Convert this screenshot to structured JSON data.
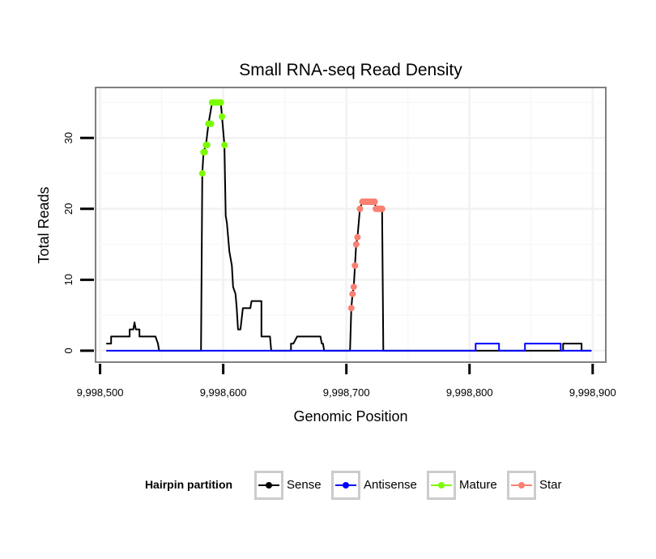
{
  "chart_data": {
    "type": "line",
    "title": "Small RNA-seq Read Density",
    "xlabel": "Genomic Position",
    "ylabel": "Total Reads",
    "xlim": [
      9998497,
      9998910
    ],
    "ylim": [
      -1.5,
      37
    ],
    "x_ticks": [
      9998500,
      9998600,
      9998700,
      9998800,
      9998900
    ],
    "x_tick_labels": [
      "9,998,500",
      "9,998,600",
      "9,998,700",
      "9,998,800",
      "9,998,900"
    ],
    "y_ticks": [
      0,
      10,
      20,
      30
    ],
    "y_tick_labels": [
      "0",
      "10",
      "20",
      "30"
    ],
    "grid": true,
    "legend": {
      "title": "Hairpin partition",
      "position": "bottom",
      "entries": [
        "Sense",
        "Antisense",
        "Mature",
        "Star"
      ]
    },
    "series": [
      {
        "name": "Sense",
        "color": "#000000",
        "markers": false,
        "points": [
          [
            9998505,
            1
          ],
          [
            9998509,
            1
          ],
          [
            9998509,
            2
          ],
          [
            9998524,
            2
          ],
          [
            9998524,
            3
          ],
          [
            9998527,
            3
          ],
          [
            9998528,
            4
          ],
          [
            9998529,
            3
          ],
          [
            9998532,
            3
          ],
          [
            9998532,
            2
          ],
          [
            9998545,
            2
          ],
          [
            9998547,
            1
          ],
          [
            9998548,
            0
          ],
          [
            9998582,
            0
          ],
          [
            9998583,
            25
          ],
          [
            9998584,
            28
          ],
          [
            9998586,
            29
          ],
          [
            9998588,
            32
          ],
          [
            9998591,
            35
          ],
          [
            9998598,
            35
          ],
          [
            9998599,
            33
          ],
          [
            9998601,
            29
          ],
          [
            9998602,
            19
          ],
          [
            9998603,
            18
          ],
          [
            9998604,
            16
          ],
          [
            9998605,
            14
          ],
          [
            9998607,
            12
          ],
          [
            9998608,
            9
          ],
          [
            9998610,
            8
          ],
          [
            9998611,
            6
          ],
          [
            9998612,
            3
          ],
          [
            9998614,
            3
          ],
          [
            9998616,
            6
          ],
          [
            9998622,
            6
          ],
          [
            9998623,
            7
          ],
          [
            9998631,
            7
          ],
          [
            9998631,
            2
          ],
          [
            9998638,
            2
          ],
          [
            9998639,
            0
          ],
          [
            9998655,
            0
          ],
          [
            9998655,
            1
          ],
          [
            9998657,
            1
          ],
          [
            9998660,
            2
          ],
          [
            9998679,
            2
          ],
          [
            9998680,
            1
          ],
          [
            9998681,
            1
          ],
          [
            9998682,
            0
          ],
          [
            9998703,
            0
          ],
          [
            9998704,
            6
          ],
          [
            9998705,
            8
          ],
          [
            9998706,
            9
          ],
          [
            9998707,
            12
          ],
          [
            9998708,
            15
          ],
          [
            9998709,
            16
          ],
          [
            9998711,
            20
          ],
          [
            9998713,
            21
          ],
          [
            9998723,
            21
          ],
          [
            9998724,
            20
          ],
          [
            9998729,
            20
          ],
          [
            9998730,
            0
          ],
          [
            9998876,
            0
          ],
          [
            9998876,
            1
          ],
          [
            9998891,
            1
          ],
          [
            9998891,
            0
          ],
          [
            9998899,
            0
          ]
        ]
      },
      {
        "name": "Antisense",
        "color": "#0000ff",
        "markers": false,
        "points": [
          [
            9998505,
            0
          ],
          [
            9998805,
            0
          ],
          [
            9998805,
            1
          ],
          [
            9998824,
            1
          ],
          [
            9998824,
            0
          ],
          [
            9998845,
            0
          ],
          [
            9998845,
            1
          ],
          [
            9998874,
            1
          ],
          [
            9998874,
            0
          ],
          [
            9998899,
            0
          ]
        ]
      },
      {
        "name": "Mature",
        "color": "#7cfc00",
        "markers": true,
        "points": [
          [
            9998583,
            25
          ],
          [
            9998584,
            28
          ],
          [
            9998585,
            28
          ],
          [
            9998586,
            29
          ],
          [
            9998587,
            29
          ],
          [
            9998588,
            32
          ],
          [
            9998589,
            32
          ],
          [
            9998590,
            32
          ],
          [
            9998591,
            35
          ],
          [
            9998592,
            35
          ],
          [
            9998593,
            35
          ],
          [
            9998594,
            35
          ],
          [
            9998595,
            35
          ],
          [
            9998596,
            35
          ],
          [
            9998597,
            35
          ],
          [
            9998598,
            35
          ],
          [
            9998599,
            33
          ],
          [
            9998601,
            29
          ]
        ]
      },
      {
        "name": "Star",
        "color": "#fa8072",
        "markers": true,
        "points": [
          [
            9998704,
            6
          ],
          [
            9998705,
            8
          ],
          [
            9998706,
            9
          ],
          [
            9998707,
            12
          ],
          [
            9998708,
            15
          ],
          [
            9998709,
            16
          ],
          [
            9998711,
            20
          ],
          [
            9998713,
            21
          ],
          [
            9998714,
            21
          ],
          [
            9998715,
            21
          ],
          [
            9998716,
            21
          ],
          [
            9998717,
            21
          ],
          [
            9998718,
            21
          ],
          [
            9998719,
            21
          ],
          [
            9998720,
            21
          ],
          [
            9998721,
            21
          ],
          [
            9998722,
            21
          ],
          [
            9998723,
            21
          ],
          [
            9998724,
            20
          ],
          [
            9998725,
            20
          ],
          [
            9998726,
            20
          ],
          [
            9998727,
            20
          ],
          [
            9998728,
            20
          ],
          [
            9998729,
            20
          ]
        ]
      }
    ]
  }
}
